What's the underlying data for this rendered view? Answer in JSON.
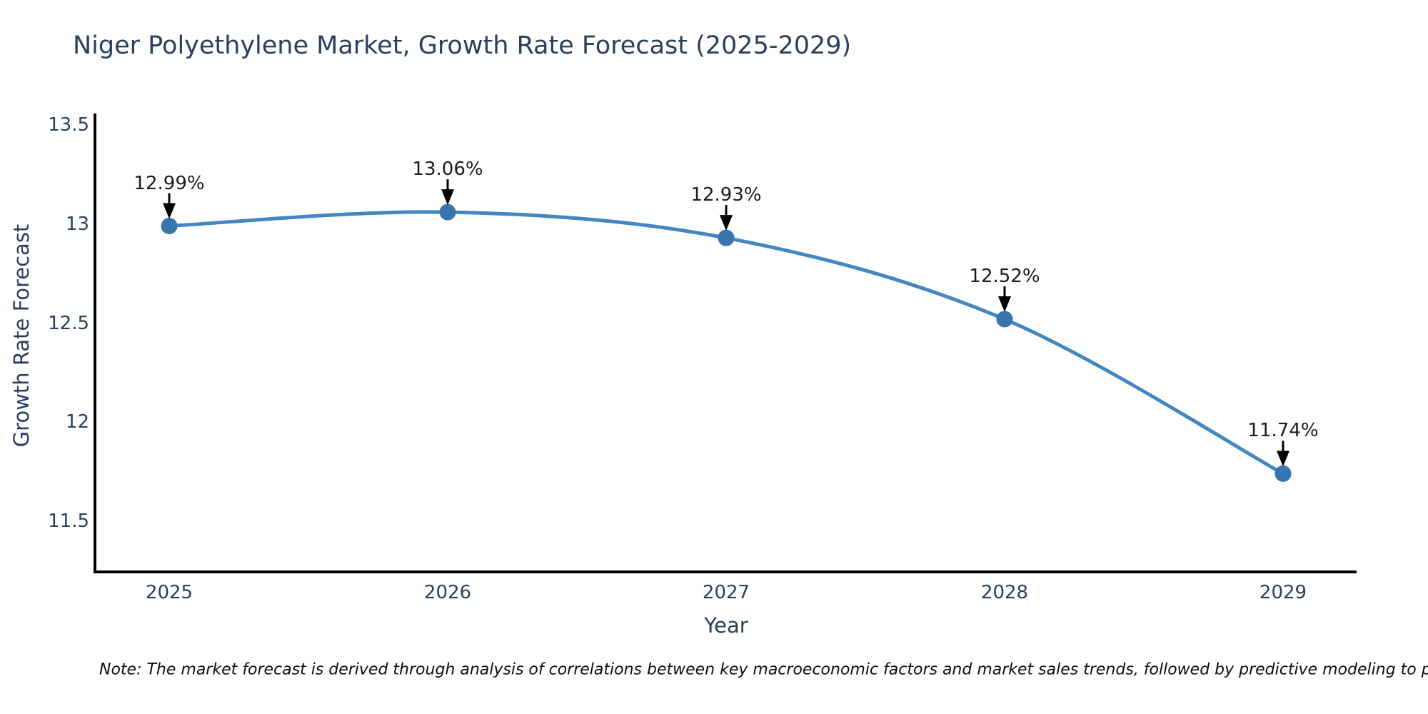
{
  "page": {
    "background_color": "#ffffff"
  },
  "chart_data": {
    "type": "line",
    "title": "Niger Polyethylene Market, Growth Rate Forecast (2025-2029)",
    "xlabel": "Year",
    "ylabel": "Growth Rate Forecast",
    "x": [
      2025,
      2026,
      2027,
      2028,
      2029
    ],
    "y": [
      12.99,
      13.06,
      12.93,
      12.52,
      11.74
    ],
    "point_labels": [
      "12.99%",
      "13.06%",
      "12.93%",
      "12.52%",
      "11.74%"
    ],
    "xticks": [
      2025,
      2026,
      2027,
      2028,
      2029
    ],
    "yticks": [
      13.5,
      13,
      12.5,
      12,
      11.5
    ],
    "xlim": [
      2024.7333,
      2029.2641
    ],
    "ylim": [
      11.2514,
      13.5577
    ],
    "grid": false,
    "legend_position": "none",
    "line_shape": "spline",
    "colors": {
      "line": "#4386c0",
      "marker": "#3874ae",
      "axis_line": "#000000",
      "tick_text": "#2a3f5f",
      "title_text": "#2a3f5f",
      "annotation_text": "#1c1c1c",
      "annotation_arrow": "#000000"
    }
  },
  "note": {
    "text": "Note: The market forecast is derived through analysis of correlations between key macroeconomic factors and market sales trends, followed by predictive modeling to project future sales"
  }
}
